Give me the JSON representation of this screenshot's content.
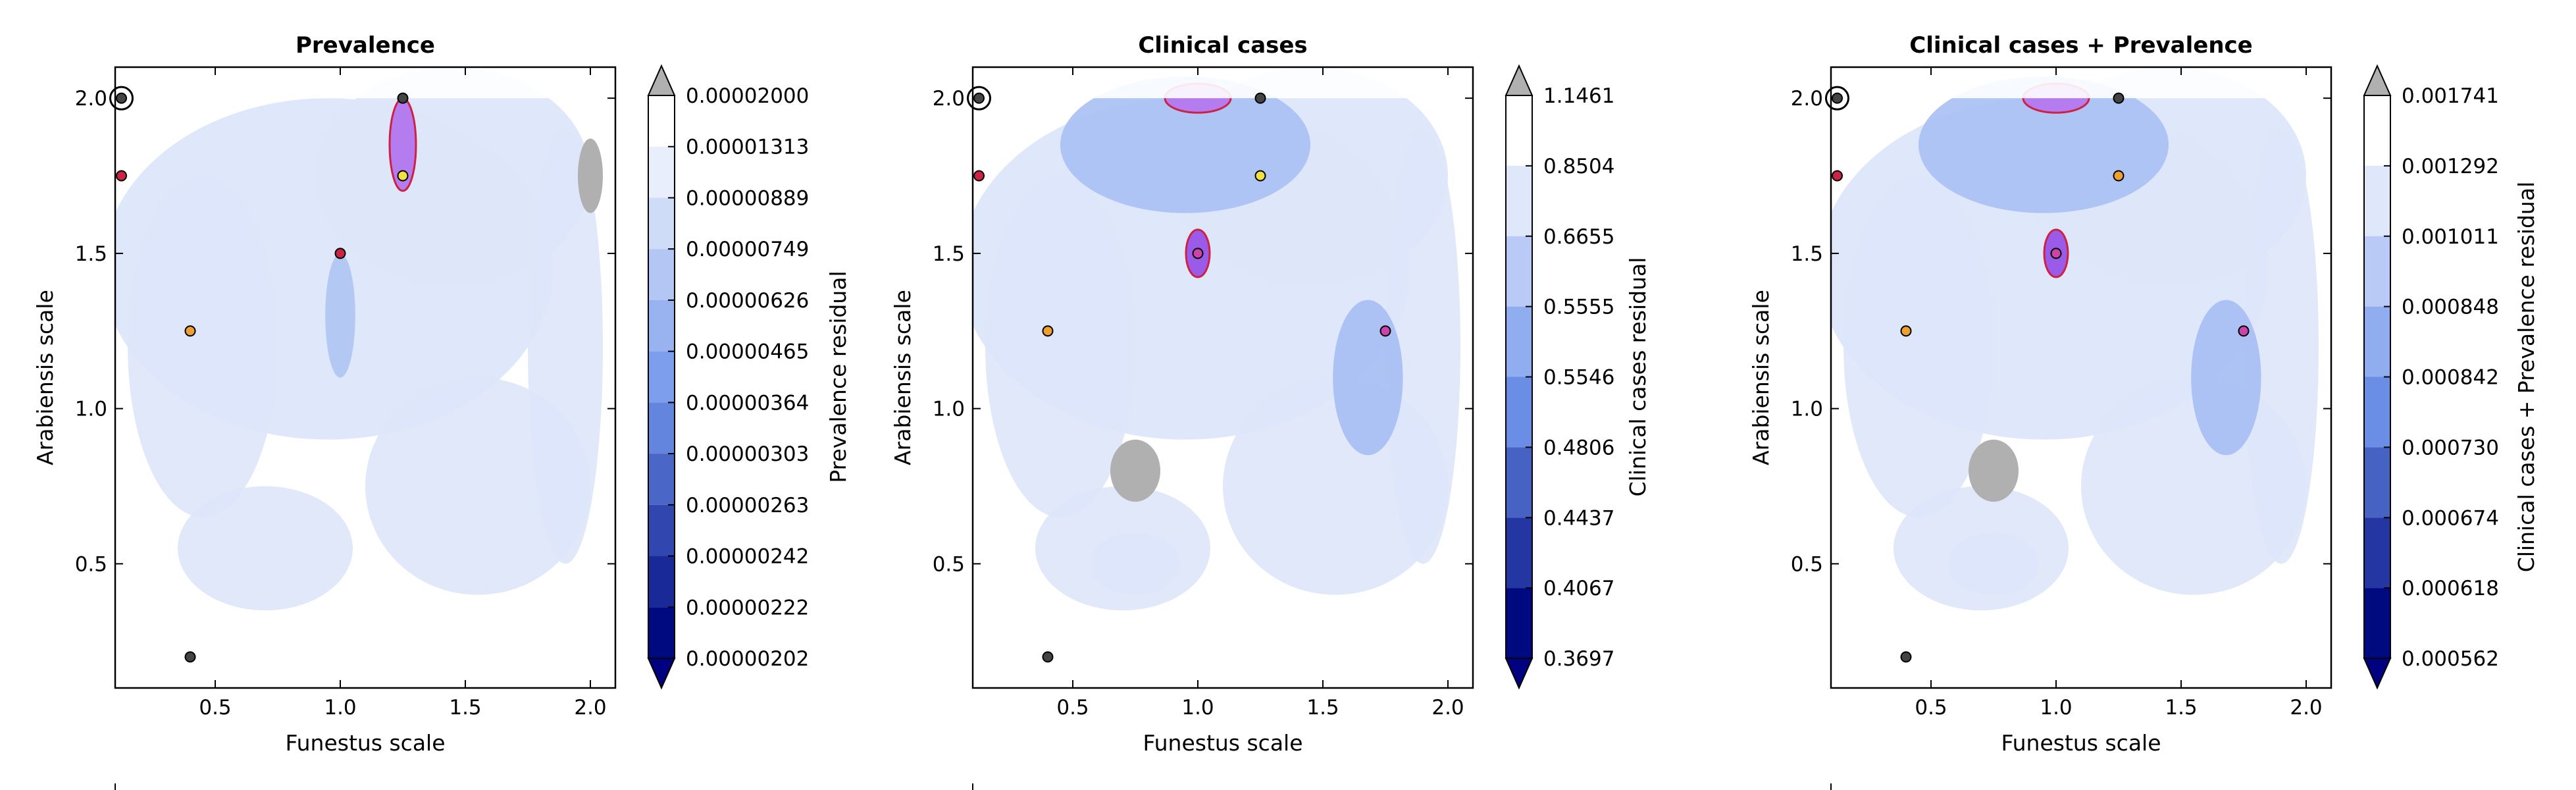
{
  "chart_data": [
    {
      "type": "contour",
      "title": "Prevalence",
      "xlabel": "Funestus scale",
      "ylabel": "Arabiensis scale",
      "xlim": [
        0.1,
        2.1
      ],
      "ylim": [
        0.1,
        2.1
      ],
      "xticks": [
        "0.5",
        "1.0",
        "1.5",
        "2.0"
      ],
      "yticks": [
        "0.5",
        "1.0",
        "1.5",
        "2.0"
      ],
      "colorbar": {
        "label": "Prevalence residual",
        "levels": [
          "0.00002000",
          "0.00001313",
          "0.00000889",
          "0.00000749",
          "0.00000626",
          "0.00000465",
          "0.00000364",
          "0.00000303",
          "0.00000263",
          "0.00000242",
          "0.00000222",
          "0.00000202"
        ]
      },
      "markers": [
        {
          "x": 0.125,
          "y": 2.0,
          "color": "#444444",
          "ring": true
        },
        {
          "x": 1.25,
          "y": 2.0,
          "color": "#444444"
        },
        {
          "x": 0.125,
          "y": 1.75,
          "color": "#cc2244"
        },
        {
          "x": 1.25,
          "y": 1.75,
          "color": "#f0e040"
        },
        {
          "x": 1.0,
          "y": 1.5,
          "color": "#cc2244"
        },
        {
          "x": 0.4,
          "y": 1.25,
          "color": "#f0a030"
        },
        {
          "x": 0.4,
          "y": 0.2,
          "color": "#444444"
        }
      ]
    },
    {
      "type": "contour",
      "title": "Clinical cases",
      "xlabel": "Funestus scale",
      "ylabel": "Arabiensis scale",
      "xlim": [
        0.1,
        2.1
      ],
      "ylim": [
        0.1,
        2.1
      ],
      "xticks": [
        "0.5",
        "1.0",
        "1.5",
        "2.0"
      ],
      "yticks": [
        "0.5",
        "1.0",
        "1.5",
        "2.0"
      ],
      "colorbar": {
        "label": "Clinical cases residual",
        "levels": [
          "1.1461",
          "0.8504",
          "0.6655",
          "0.5555",
          "0.5546",
          "0.4806",
          "0.4437",
          "0.4067",
          "0.3697"
        ]
      },
      "markers": [
        {
          "x": 0.125,
          "y": 2.0,
          "color": "#444444",
          "ring": true
        },
        {
          "x": 1.25,
          "y": 2.0,
          "color": "#444444"
        },
        {
          "x": 0.125,
          "y": 1.75,
          "color": "#cc2244"
        },
        {
          "x": 1.25,
          "y": 1.75,
          "color": "#f0e040"
        },
        {
          "x": 1.0,
          "y": 1.5,
          "color": "#cc44aa"
        },
        {
          "x": 0.4,
          "y": 1.25,
          "color": "#f0a030"
        },
        {
          "x": 1.75,
          "y": 1.25,
          "color": "#cc44aa"
        },
        {
          "x": 0.4,
          "y": 0.2,
          "color": "#444444"
        }
      ]
    },
    {
      "type": "contour",
      "title": "Clinical cases + Prevalence",
      "xlabel": "Funestus scale",
      "ylabel": "Arabiensis scale",
      "xlim": [
        0.1,
        2.1
      ],
      "ylim": [
        0.1,
        2.1
      ],
      "xticks": [
        "0.5",
        "1.0",
        "1.5",
        "2.0"
      ],
      "yticks": [
        "0.5",
        "1.0",
        "1.5",
        "2.0"
      ],
      "colorbar": {
        "label": "Clinical cases + Prevalence residual",
        "levels": [
          "0.001741",
          "0.001292",
          "0.001011",
          "0.000848",
          "0.000842",
          "0.000730",
          "0.000674",
          "0.000618",
          "0.000562"
        ]
      },
      "markers": [
        {
          "x": 0.125,
          "y": 2.0,
          "color": "#444444",
          "ring": true
        },
        {
          "x": 1.25,
          "y": 2.0,
          "color": "#444444"
        },
        {
          "x": 0.125,
          "y": 1.75,
          "color": "#cc2244"
        },
        {
          "x": 1.25,
          "y": 1.75,
          "color": "#f0a030"
        },
        {
          "x": 1.0,
          "y": 1.5,
          "color": "#cc44aa"
        },
        {
          "x": 0.4,
          "y": 1.25,
          "color": "#f0a030"
        },
        {
          "x": 1.75,
          "y": 1.25,
          "color": "#cc44aa"
        },
        {
          "x": 0.4,
          "y": 0.2,
          "color": "#444444"
        }
      ]
    }
  ]
}
